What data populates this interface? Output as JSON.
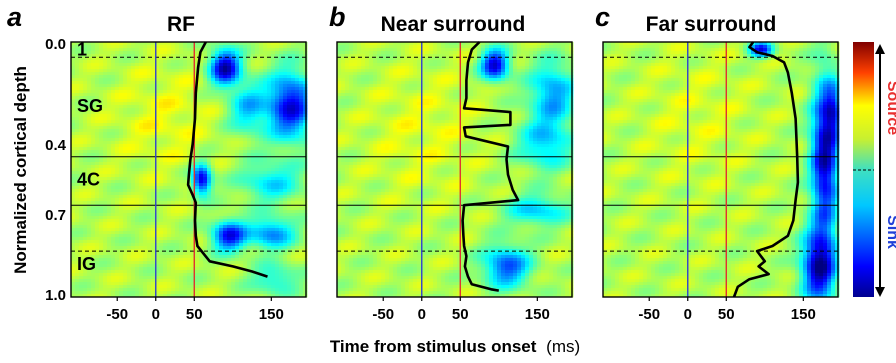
{
  "chart_data": [
    {
      "type": "heatmap",
      "panel": "a",
      "title": "RF",
      "xlim": [
        -110,
        195
      ],
      "ylim": [
        0.0,
        1.0
      ],
      "x_ticks": [
        -50,
        0,
        50,
        150
      ],
      "y_ticks": [
        0.0,
        0.4,
        0.7,
        1.0
      ],
      "layer_lines": [
        {
          "depth": 0.06,
          "style": "dashed"
        },
        {
          "depth": 0.45,
          "style": "solid"
        },
        {
          "depth": 0.64,
          "style": "solid"
        },
        {
          "depth": 0.82,
          "style": "dashed"
        }
      ],
      "layer_labels": [
        {
          "label": "1",
          "depth": 0.03
        },
        {
          "label": "SG",
          "depth": 0.25
        },
        {
          "label": "4C",
          "depth": 0.54
        },
        {
          "label": "IG",
          "depth": 0.87
        }
      ],
      "onset_line": [
        {
          "depth": 0.0,
          "ms": 65
        },
        {
          "depth": 0.04,
          "ms": 58
        },
        {
          "depth": 0.1,
          "ms": 55
        },
        {
          "depth": 0.2,
          "ms": 52
        },
        {
          "depth": 0.3,
          "ms": 51
        },
        {
          "depth": 0.4,
          "ms": 48
        },
        {
          "depth": 0.46,
          "ms": 45
        },
        {
          "depth": 0.52,
          "ms": 43
        },
        {
          "depth": 0.56,
          "ms": 42
        },
        {
          "depth": 0.6,
          "ms": 48
        },
        {
          "depth": 0.63,
          "ms": 52
        },
        {
          "depth": 0.7,
          "ms": 51
        },
        {
          "depth": 0.76,
          "ms": 52
        },
        {
          "depth": 0.8,
          "ms": 54
        },
        {
          "depth": 0.86,
          "ms": 70
        },
        {
          "depth": 0.88,
          "ms": 100
        },
        {
          "depth": 0.9,
          "ms": 125
        },
        {
          "depth": 0.92,
          "ms": 145
        }
      ],
      "blobs": [
        {
          "ms": 90,
          "depth": 0.1,
          "strength": -1.0,
          "width": 20,
          "height": 0.07
        },
        {
          "ms": 175,
          "depth": 0.25,
          "strength": -0.9,
          "width": 30,
          "height": 0.13
        },
        {
          "ms": 120,
          "depth": 0.26,
          "strength": -0.45,
          "width": 25,
          "height": 0.1
        },
        {
          "ms": 60,
          "depth": 0.54,
          "strength": -0.95,
          "width": 12,
          "height": 0.06
        },
        {
          "ms": 150,
          "depth": 0.55,
          "strength": -0.4,
          "width": 40,
          "height": 0.08
        },
        {
          "ms": 95,
          "depth": 0.76,
          "strength": -0.85,
          "width": 22,
          "height": 0.06
        },
        {
          "ms": 150,
          "depth": 0.75,
          "strength": -0.6,
          "width": 30,
          "height": 0.06
        },
        {
          "ms": 155,
          "depth": 0.93,
          "strength": -0.35,
          "width": 30,
          "height": 0.06
        },
        {
          "ms": 10,
          "depth": 0.3,
          "strength": 0.12,
          "width": 60,
          "height": 0.2
        }
      ]
    },
    {
      "type": "heatmap",
      "panel": "b",
      "title": "Near surround",
      "xlim": [
        -110,
        195
      ],
      "ylim": [
        0.0,
        1.0
      ],
      "x_ticks": [
        -50,
        0,
        50,
        150
      ],
      "layer_lines": [
        {
          "depth": 0.06,
          "style": "dashed"
        },
        {
          "depth": 0.45,
          "style": "solid"
        },
        {
          "depth": 0.64,
          "style": "solid"
        },
        {
          "depth": 0.82,
          "style": "dashed"
        }
      ],
      "onset_line": [
        {
          "depth": 0.0,
          "ms": 75
        },
        {
          "depth": 0.03,
          "ms": 65
        },
        {
          "depth": 0.08,
          "ms": 60
        },
        {
          "depth": 0.15,
          "ms": 58
        },
        {
          "depth": 0.22,
          "ms": 58
        },
        {
          "depth": 0.26,
          "ms": 55
        },
        {
          "depth": 0.275,
          "ms": 115
        },
        {
          "depth": 0.325,
          "ms": 115
        },
        {
          "depth": 0.335,
          "ms": 55
        },
        {
          "depth": 0.37,
          "ms": 57
        },
        {
          "depth": 0.41,
          "ms": 112
        },
        {
          "depth": 0.46,
          "ms": 110
        },
        {
          "depth": 0.52,
          "ms": 112
        },
        {
          "depth": 0.58,
          "ms": 118
        },
        {
          "depth": 0.62,
          "ms": 125
        },
        {
          "depth": 0.64,
          "ms": 55
        },
        {
          "depth": 0.7,
          "ms": 53
        },
        {
          "depth": 0.76,
          "ms": 54
        },
        {
          "depth": 0.8,
          "ms": 55
        },
        {
          "depth": 0.84,
          "ms": 58
        },
        {
          "depth": 0.88,
          "ms": 56
        },
        {
          "depth": 0.92,
          "ms": 60
        },
        {
          "depth": 0.95,
          "ms": 65
        },
        {
          "depth": 0.97,
          "ms": 90
        },
        {
          "depth": 0.975,
          "ms": 100
        }
      ],
      "blobs": [
        {
          "ms": 95,
          "depth": 0.09,
          "strength": -0.95,
          "width": 18,
          "height": 0.06
        },
        {
          "ms": 170,
          "depth": 0.2,
          "strength": -0.55,
          "width": 30,
          "height": 0.12
        },
        {
          "ms": 160,
          "depth": 0.4,
          "strength": -0.45,
          "width": 35,
          "height": 0.1
        },
        {
          "ms": 150,
          "depth": 0.66,
          "strength": -0.45,
          "width": 40,
          "height": 0.06
        },
        {
          "ms": 110,
          "depth": 0.88,
          "strength": -0.7,
          "width": 30,
          "height": 0.08
        },
        {
          "ms": 0,
          "depth": 0.35,
          "strength": 0.1,
          "width": 70,
          "height": 0.25
        }
      ]
    },
    {
      "type": "heatmap",
      "panel": "c",
      "title": "Far surround",
      "xlim": [
        -110,
        195
      ],
      "ylim": [
        0.0,
        1.0
      ],
      "x_ticks": [
        -50,
        0,
        50,
        150
      ],
      "layer_lines": [
        {
          "depth": 0.06,
          "style": "dashed"
        },
        {
          "depth": 0.45,
          "style": "solid"
        },
        {
          "depth": 0.64,
          "style": "solid"
        },
        {
          "depth": 0.82,
          "style": "dashed"
        }
      ],
      "onset_line": [
        {
          "depth": 0.0,
          "ms": 85
        },
        {
          "depth": 0.02,
          "ms": 80
        },
        {
          "depth": 0.04,
          "ms": 90
        },
        {
          "depth": 0.055,
          "ms": 110
        },
        {
          "depth": 0.08,
          "ms": 125
        },
        {
          "depth": 0.12,
          "ms": 130
        },
        {
          "depth": 0.2,
          "ms": 135
        },
        {
          "depth": 0.3,
          "ms": 140
        },
        {
          "depth": 0.45,
          "ms": 142
        },
        {
          "depth": 0.55,
          "ms": 143
        },
        {
          "depth": 0.62,
          "ms": 140
        },
        {
          "depth": 0.7,
          "ms": 137
        },
        {
          "depth": 0.76,
          "ms": 130
        },
        {
          "depth": 0.8,
          "ms": 110
        },
        {
          "depth": 0.82,
          "ms": 90
        },
        {
          "depth": 0.86,
          "ms": 100
        },
        {
          "depth": 0.88,
          "ms": 92
        },
        {
          "depth": 0.91,
          "ms": 105
        },
        {
          "depth": 0.93,
          "ms": 80
        },
        {
          "depth": 0.96,
          "ms": 65
        },
        {
          "depth": 1.0,
          "ms": 60
        }
      ],
      "blobs": [
        {
          "ms": 95,
          "depth": 0.03,
          "strength": -0.85,
          "width": 15,
          "height": 0.03
        },
        {
          "ms": 178,
          "depth": 0.45,
          "strength": -1.0,
          "width": 18,
          "height": 0.3
        },
        {
          "ms": 170,
          "depth": 0.88,
          "strength": -1.0,
          "width": 22,
          "height": 0.14
        },
        {
          "ms": 190,
          "depth": 0.27,
          "strength": -0.5,
          "width": 12,
          "height": 0.1
        },
        {
          "ms": 10,
          "depth": 0.3,
          "strength": 0.08,
          "width": 70,
          "height": 0.25
        }
      ]
    }
  ],
  "shared": {
    "ylabel": "Normalized cortical depth",
    "xlabel_bold": "Time from stimulus onset",
    "xlabel_unit": "(ms)",
    "marker_lines": [
      {
        "ms": 0,
        "color": "#3040d0"
      },
      {
        "ms": 50,
        "color": "#e03030"
      }
    ]
  },
  "colorbar": {
    "source_label": "Source",
    "sink_label": "Sink",
    "source_color": "#e83030",
    "sink_color": "#2040d8",
    "colormap": "jet"
  }
}
